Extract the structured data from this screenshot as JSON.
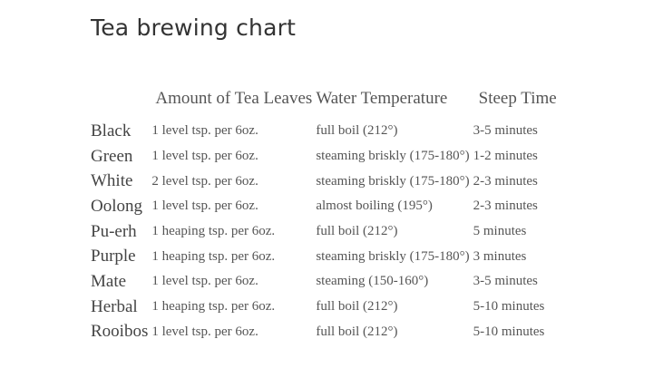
{
  "title": "Tea brewing chart",
  "table": {
    "headers": {
      "type": "",
      "amount": "Amount of Tea Leaves",
      "temperature": "Water Temperature",
      "steep_time": "Steep Time"
    },
    "rows": [
      {
        "type": "Black",
        "amount": "1 level tsp. per 6oz.",
        "temperature": "full boil (212°)",
        "steep_time": "3-5 minutes"
      },
      {
        "type": "Green",
        "amount": "1 level tsp. per 6oz.",
        "temperature": "steaming briskly (175-180°)",
        "steep_time": "1-2 minutes"
      },
      {
        "type": "White",
        "amount": "2 level tsp. per 6oz.",
        "temperature": "steaming briskly (175-180°)",
        "steep_time": "2-3 minutes"
      },
      {
        "type": "Oolong",
        "amount": "1 level tsp. per 6oz.",
        "temperature": "almost boiling (195°)",
        "steep_time": "2-3 minutes"
      },
      {
        "type": "Pu-erh",
        "amount": "1 heaping tsp. per 6oz.",
        "temperature": "full boil (212°)",
        "steep_time": "5 minutes"
      },
      {
        "type": "Purple",
        "amount": "1 heaping tsp. per 6oz.",
        "temperature": "steaming briskly (175-180°)",
        "steep_time": "3 minutes"
      },
      {
        "type": "Mate",
        "amount": "1 level tsp. per 6oz.",
        "temperature": "steaming (150-160°)",
        "steep_time": "3-5 minutes"
      },
      {
        "type": "Herbal",
        "amount": "1 heaping tsp. per 6oz.",
        "temperature": "full boil (212°)",
        "steep_time": "5-10 minutes"
      },
      {
        "type": "Rooibos",
        "amount": "1 level tsp. per 6oz.",
        "temperature": "full boil (212°)",
        "steep_time": "5-10 minutes"
      }
    ]
  }
}
